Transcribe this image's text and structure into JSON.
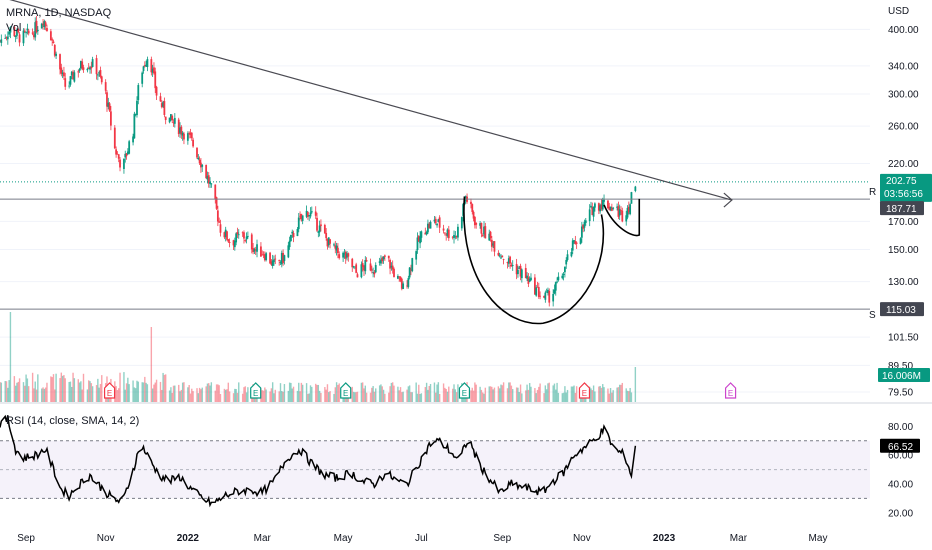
{
  "chart_data": {
    "type": "candlestick",
    "symbol_line": "MRNA, 1D, NASDAQ",
    "volume_label": "Vol",
    "currency": "USD",
    "price_ticks": [
      400.0,
      340.0,
      300.0,
      260.0,
      220.0,
      170.0,
      150.0,
      130.0,
      101.5,
      89.5,
      79.5
    ],
    "price_axis": {
      "min": 79.5,
      "max": 440,
      "scale": "log"
    },
    "x_ticks": [
      "Sep",
      "Nov",
      "2022",
      "Mar",
      "May",
      "Jul",
      "Sep",
      "Nov",
      "2023",
      "Mar",
      "May"
    ],
    "x_tick_dates": [
      "2021-09-01",
      "2021-11-01",
      "2022-01-03",
      "2022-03-01",
      "2022-05-02",
      "2022-07-01",
      "2022-09-01",
      "2022-11-01",
      "2023-01-03",
      "2023-03-01",
      "2023-05-01"
    ],
    "price_path": [
      [
        "2021-08-12",
        380
      ],
      [
        "2021-08-20",
        400
      ],
      [
        "2021-08-28",
        385
      ],
      [
        "2021-09-06",
        395
      ],
      [
        "2021-09-14",
        420
      ],
      [
        "2021-09-20",
        390
      ],
      [
        "2021-09-26",
        340
      ],
      [
        "2021-10-02",
        305
      ],
      [
        "2021-10-08",
        330
      ],
      [
        "2021-10-16",
        345
      ],
      [
        "2021-10-24",
        340
      ],
      [
        "2021-11-01",
        300
      ],
      [
        "2021-11-08",
        235
      ],
      [
        "2021-11-14",
        215
      ],
      [
        "2021-11-22",
        255
      ],
      [
        "2021-11-28",
        330
      ],
      [
        "2021-12-04",
        360
      ],
      [
        "2021-12-10",
        300
      ],
      [
        "2021-12-18",
        270
      ],
      [
        "2021-12-26",
        260
      ],
      [
        "2022-01-05",
        245
      ],
      [
        "2022-01-12",
        225
      ],
      [
        "2022-01-20",
        200
      ],
      [
        "2022-01-28",
        165
      ],
      [
        "2022-02-05",
        155
      ],
      [
        "2022-02-14",
        160
      ],
      [
        "2022-02-24",
        150
      ],
      [
        "2022-03-02",
        148
      ],
      [
        "2022-03-10",
        140
      ],
      [
        "2022-03-18",
        145
      ],
      [
        "2022-03-28",
        168
      ],
      [
        "2022-04-05",
        178
      ],
      [
        "2022-04-14",
        165
      ],
      [
        "2022-04-24",
        150
      ],
      [
        "2022-05-04",
        145
      ],
      [
        "2022-05-12",
        135
      ],
      [
        "2022-05-20",
        140
      ],
      [
        "2022-05-28",
        138
      ],
      [
        "2022-06-04",
        145
      ],
      [
        "2022-06-12",
        132
      ],
      [
        "2022-06-18",
        125
      ],
      [
        "2022-06-26",
        150
      ],
      [
        "2022-07-04",
        165
      ],
      [
        "2022-07-12",
        170
      ],
      [
        "2022-07-20",
        162
      ],
      [
        "2022-07-28",
        160
      ],
      [
        "2022-08-04",
        190
      ],
      [
        "2022-08-12",
        168
      ],
      [
        "2022-08-22",
        158
      ],
      [
        "2022-08-30",
        148
      ],
      [
        "2022-09-08",
        140
      ],
      [
        "2022-09-16",
        135
      ],
      [
        "2022-09-24",
        128
      ],
      [
        "2022-10-02",
        121
      ],
      [
        "2022-10-08",
        122
      ],
      [
        "2022-10-16",
        132
      ],
      [
        "2022-10-24",
        150
      ],
      [
        "2022-11-02",
        165
      ],
      [
        "2022-11-10",
        182
      ],
      [
        "2022-11-18",
        185
      ],
      [
        "2022-11-26",
        180
      ],
      [
        "2022-12-02",
        175
      ],
      [
        "2022-12-08",
        184
      ],
      [
        "2022-12-12",
        202.75
      ]
    ],
    "volume_spikes": [
      [
        "2021-11-07",
        1.0
      ],
      [
        "2021-08-20",
        0.6
      ],
      [
        "2021-12-06",
        0.5
      ],
      [
        "2022-10-15",
        0.3
      ],
      [
        "2022-12-12",
        0.35
      ]
    ],
    "current_price": {
      "value": 202.75,
      "label": "202.75",
      "countdown": "03:56:56"
    },
    "resistance": {
      "value": 187.71,
      "label": "187.71",
      "tag": "R"
    },
    "support": {
      "value": 115.03,
      "label": "115.03",
      "tag": "S"
    },
    "volume_badge": "16.006M",
    "trendline": {
      "start": [
        "2021-08-12",
        480
      ],
      "end": [
        "2023-02-24",
        187
      ]
    },
    "earnings_markers": [
      {
        "date": "2021-08-05",
        "type": "E",
        "color": "#089981"
      },
      {
        "date": "2021-11-04",
        "type": "E",
        "color": "#f23645"
      },
      {
        "date": "2022-02-24",
        "type": "E",
        "color": "#089981"
      },
      {
        "date": "2022-05-04",
        "type": "E",
        "color": "#089981"
      },
      {
        "date": "2022-08-03",
        "type": "E",
        "color": "#089981"
      },
      {
        "date": "2022-11-03",
        "type": "E",
        "color": "#f23645"
      },
      {
        "date": "2023-02-23",
        "type": "E",
        "color": "#cc44cc"
      }
    ],
    "rsi": {
      "title": "RSI (14, close, SMA, 14, 2)",
      "ticks": [
        80.0,
        60.0,
        40.0,
        20.0
      ],
      "band_upper": 70,
      "band_mid": 50,
      "band_lower": 30,
      "axis": {
        "min": 15,
        "max": 90
      },
      "last_label": "66.52",
      "path": [
        [
          "2021-08-12",
          82
        ],
        [
          "2021-08-18",
          85
        ],
        [
          "2021-08-24",
          64
        ],
        [
          "2021-08-30",
          58
        ],
        [
          "2021-09-08",
          60
        ],
        [
          "2021-09-16",
          64
        ],
        [
          "2021-09-22",
          50
        ],
        [
          "2021-09-28",
          36
        ],
        [
          "2021-10-04",
          32
        ],
        [
          "2021-10-12",
          40
        ],
        [
          "2021-10-20",
          46
        ],
        [
          "2021-10-28",
          38
        ],
        [
          "2021-11-06",
          30
        ],
        [
          "2021-11-14",
          27
        ],
        [
          "2021-11-22",
          50
        ],
        [
          "2021-11-28",
          68
        ],
        [
          "2021-12-04",
          58
        ],
        [
          "2021-12-12",
          46
        ],
        [
          "2021-12-20",
          42
        ],
        [
          "2021-12-28",
          45
        ],
        [
          "2022-01-06",
          36
        ],
        [
          "2022-01-14",
          30
        ],
        [
          "2022-01-22",
          26
        ],
        [
          "2022-02-01",
          32
        ],
        [
          "2022-02-10",
          35
        ],
        [
          "2022-02-20",
          36
        ],
        [
          "2022-03-01",
          34
        ],
        [
          "2022-03-10",
          42
        ],
        [
          "2022-03-20",
          58
        ],
        [
          "2022-03-30",
          64
        ],
        [
          "2022-04-08",
          54
        ],
        [
          "2022-04-18",
          46
        ],
        [
          "2022-04-28",
          44
        ],
        [
          "2022-05-08",
          48
        ],
        [
          "2022-05-16",
          42
        ],
        [
          "2022-05-26",
          40
        ],
        [
          "2022-06-04",
          48
        ],
        [
          "2022-06-12",
          42
        ],
        [
          "2022-06-20",
          40
        ],
        [
          "2022-06-30",
          56
        ],
        [
          "2022-07-08",
          68
        ],
        [
          "2022-07-14",
          70
        ],
        [
          "2022-07-22",
          64
        ],
        [
          "2022-07-30",
          56
        ],
        [
          "2022-08-06",
          72
        ],
        [
          "2022-08-14",
          54
        ],
        [
          "2022-08-22",
          44
        ],
        [
          "2022-08-30",
          34
        ],
        [
          "2022-09-08",
          40
        ],
        [
          "2022-09-16",
          38
        ],
        [
          "2022-09-24",
          36
        ],
        [
          "2022-10-02",
          34
        ],
        [
          "2022-10-10",
          42
        ],
        [
          "2022-10-18",
          48
        ],
        [
          "2022-10-26",
          60
        ],
        [
          "2022-11-04",
          66
        ],
        [
          "2022-11-12",
          72
        ],
        [
          "2022-11-18",
          78
        ],
        [
          "2022-11-26",
          64
        ],
        [
          "2022-12-04",
          60
        ],
        [
          "2022-12-09",
          46
        ],
        [
          "2022-12-12",
          66.52
        ]
      ]
    }
  }
}
